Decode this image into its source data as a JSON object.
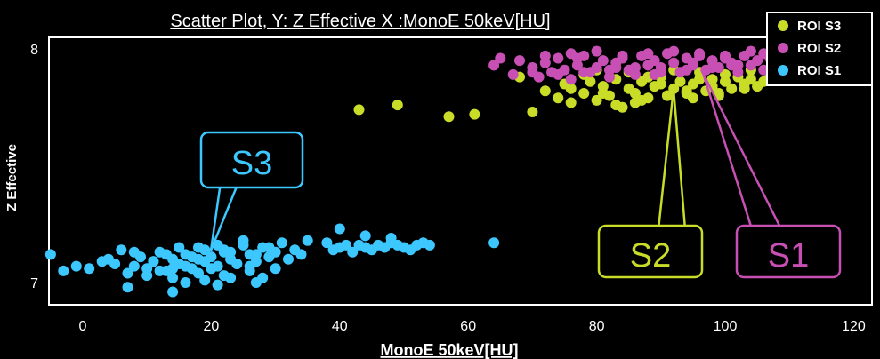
{
  "chart_data": {
    "type": "scatter",
    "title": "Scatter Plot, Y: Z Effective X :MonoE 50keV[HU]",
    "xlabel": "MonoE 50keV[HU]",
    "ylabel": "Z Effective",
    "xlim": [
      -5,
      120
    ],
    "ylim": [
      6.95,
      8.0
    ],
    "xticks": [
      "0",
      "20",
      "40",
      "60",
      "80",
      "100",
      "120"
    ],
    "yticks": [
      "7",
      "8"
    ],
    "grid": false,
    "legend": "top-right",
    "series": [
      {
        "name": "ROI S3",
        "color": "#c8dc28",
        "x": [
          43,
          49,
          57,
          61,
          68,
          70,
          72,
          74,
          75,
          76,
          78,
          79,
          80,
          81,
          82,
          83,
          84,
          85,
          86,
          87,
          88,
          89,
          90,
          91,
          92,
          93,
          94,
          95,
          96,
          97,
          98,
          99,
          100,
          101,
          102,
          103,
          104,
          105,
          106,
          107,
          78,
          80,
          85,
          88,
          92,
          96,
          100,
          104,
          83,
          87,
          91,
          95,
          99,
          103,
          76,
          81,
          86,
          90,
          94,
          98
        ],
        "y": [
          7.74,
          7.76,
          7.71,
          7.72,
          7.88,
          7.73,
          7.82,
          7.79,
          7.85,
          7.77,
          7.81,
          7.86,
          7.78,
          7.84,
          7.8,
          7.87,
          7.75,
          7.83,
          7.81,
          7.86,
          7.79,
          7.84,
          7.88,
          7.8,
          7.83,
          7.86,
          7.81,
          7.85,
          7.87,
          7.82,
          7.84,
          7.8,
          7.86,
          7.83,
          7.88,
          7.85,
          7.87,
          7.84,
          7.86,
          7.89,
          7.89,
          7.91,
          7.9,
          7.88,
          7.91,
          7.9,
          7.89,
          7.91,
          7.76,
          7.78,
          7.8,
          7.79,
          7.81,
          7.83,
          7.83,
          7.81,
          7.77,
          7.85,
          7.82,
          7.87
        ]
      },
      {
        "name": "ROI S2",
        "color": "#c850b4",
        "x": [
          64,
          65,
          67,
          68,
          70,
          71,
          72,
          73,
          74,
          75,
          76,
          77,
          78,
          79,
          80,
          81,
          82,
          83,
          84,
          85,
          86,
          87,
          88,
          89,
          90,
          91,
          92,
          93,
          94,
          95,
          96,
          97,
          98,
          99,
          100,
          101,
          102,
          103,
          104,
          105,
          106,
          107,
          72,
          76,
          80,
          84,
          88,
          92,
          96,
          100,
          104,
          74,
          78,
          82,
          86,
          90,
          94,
          98,
          102,
          106,
          70,
          77,
          83,
          89,
          95,
          101
        ],
        "y": [
          7.93,
          7.96,
          7.89,
          7.95,
          7.92,
          7.88,
          7.94,
          7.9,
          7.96,
          7.91,
          7.87,
          7.93,
          7.97,
          7.9,
          7.92,
          7.95,
          7.88,
          7.94,
          7.96,
          7.91,
          7.89,
          7.97,
          7.93,
          7.95,
          7.92,
          7.98,
          7.94,
          7.9,
          7.96,
          7.93,
          7.97,
          7.91,
          7.95,
          7.92,
          7.96,
          7.94,
          7.9,
          7.97,
          7.93,
          7.95,
          7.98,
          7.96,
          7.97,
          7.98,
          7.99,
          7.97,
          7.98,
          7.99,
          7.98,
          7.97,
          7.99,
          7.89,
          7.9,
          7.91,
          7.92,
          7.9,
          7.91,
          7.92,
          7.93,
          7.91,
          7.9,
          7.96,
          7.92,
          7.89,
          7.94,
          7.93
        ]
      },
      {
        "name": "ROI S1",
        "color": "#3cc8ff",
        "x": [
          -5,
          -3,
          -1,
          1,
          3,
          4,
          5,
          6,
          7,
          8,
          9,
          10,
          11,
          12,
          13,
          14,
          15,
          16,
          17,
          18,
          19,
          20,
          21,
          22,
          23,
          24,
          25,
          26,
          27,
          28,
          29,
          30,
          31,
          32,
          33,
          34,
          35,
          10,
          12,
          14,
          16,
          18,
          20,
          22,
          24,
          26,
          28,
          30,
          13,
          15,
          17,
          19,
          21,
          23,
          25,
          27,
          29,
          11,
          14,
          18,
          22,
          26,
          8,
          7,
          14,
          16,
          19,
          21,
          23,
          27,
          38,
          39,
          40,
          41,
          42,
          43,
          44,
          45,
          46,
          47,
          48,
          49,
          50,
          51,
          52,
          53,
          54,
          40,
          44,
          48,
          64
        ],
        "y": [
          7.12,
          7.05,
          7.07,
          7.06,
          7.09,
          7.1,
          7.08,
          7.14,
          7.04,
          7.07,
          7.11,
          7.06,
          7.09,
          7.13,
          7.05,
          7.1,
          7.08,
          7.12,
          7.06,
          7.15,
          7.09,
          7.11,
          7.07,
          7.14,
          7.1,
          7.08,
          7.16,
          7.12,
          7.09,
          7.15,
          7.11,
          7.13,
          7.17,
          7.1,
          7.14,
          7.12,
          7.18,
          7.03,
          7.05,
          7.02,
          7.07,
          7.04,
          7.06,
          7.03,
          7.08,
          7.05,
          7.02,
          7.06,
          7.12,
          7.15,
          7.11,
          7.14,
          7.16,
          7.13,
          7.18,
          7.12,
          7.15,
          7.09,
          7.06,
          7.1,
          7.13,
          7.07,
          7.13,
          6.98,
          6.96,
          7.0,
          7.01,
          6.99,
          7.02,
          7.0,
          7.17,
          7.14,
          7.15,
          7.16,
          7.13,
          7.16,
          7.15,
          7.14,
          7.16,
          7.15,
          7.17,
          7.16,
          7.15,
          7.14,
          7.16,
          7.17,
          7.16,
          7.23,
          7.2,
          7.19,
          7.17
        ]
      }
    ],
    "annotations": [
      {
        "text": "S3",
        "color": "#3cc8ff"
      },
      {
        "text": "S2",
        "color": "#c8dc28"
      },
      {
        "text": "S1",
        "color": "#c850b4"
      }
    ]
  }
}
